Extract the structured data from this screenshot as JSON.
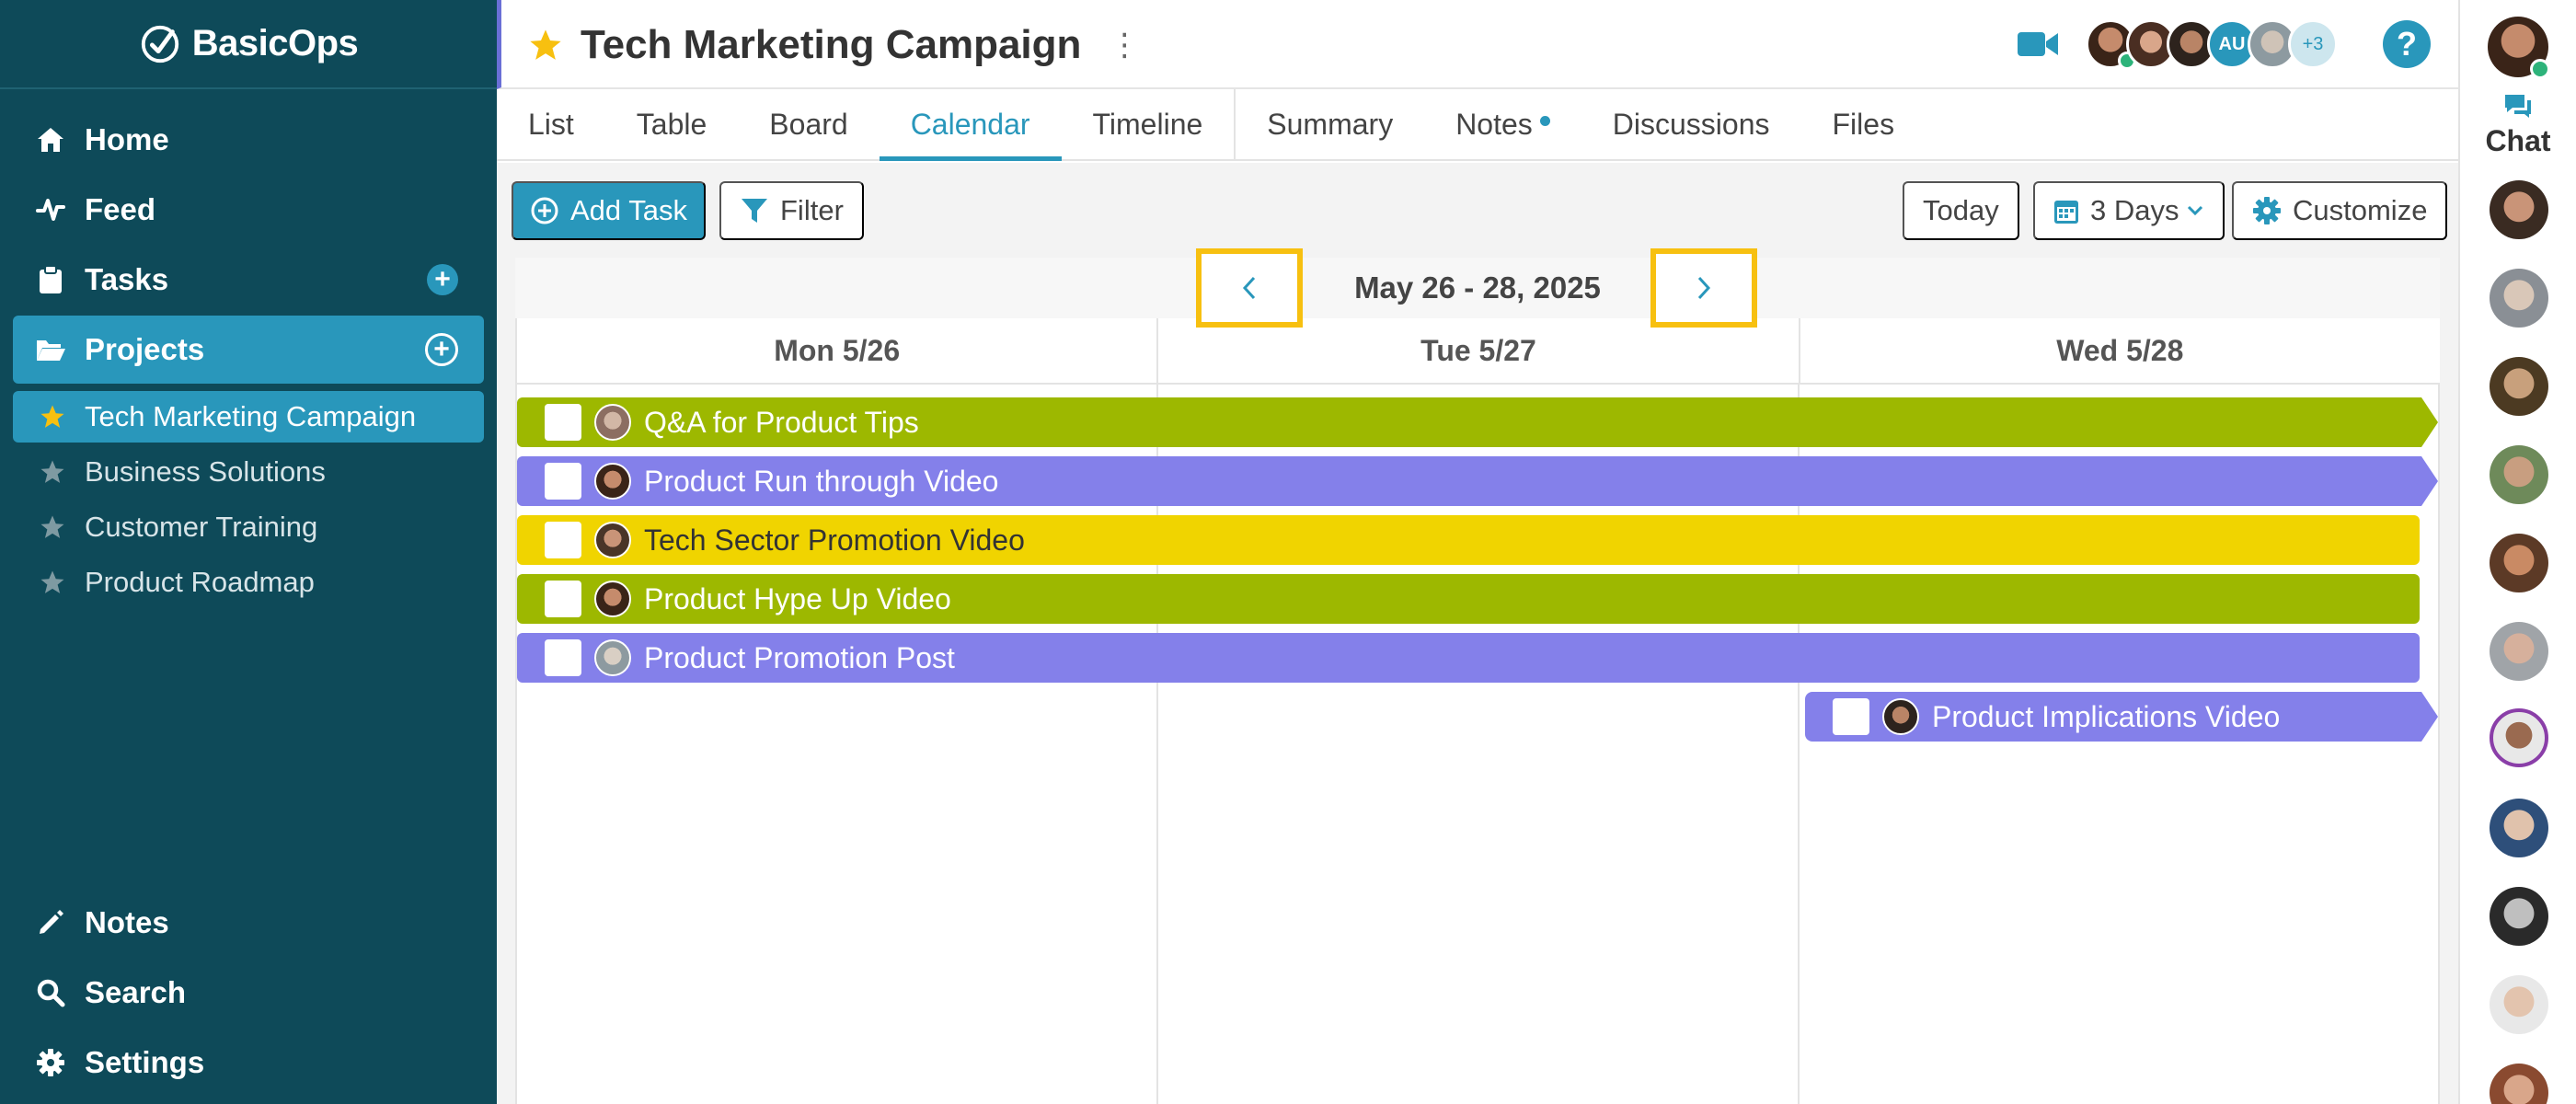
{
  "app": {
    "name": "BasicOps"
  },
  "sidebar": {
    "nav": [
      {
        "label": "Home",
        "icon": "home-icon"
      },
      {
        "label": "Feed",
        "icon": "activity-icon"
      },
      {
        "label": "Tasks",
        "icon": "clipboard-icon"
      },
      {
        "label": "Projects",
        "icon": "folder-icon"
      }
    ],
    "projects": [
      {
        "label": "Tech Marketing Campaign",
        "active": true
      },
      {
        "label": "Business Solutions"
      },
      {
        "label": "Customer Training"
      },
      {
        "label": "Product Roadmap"
      }
    ],
    "bottom": [
      {
        "label": "Notes",
        "icon": "pencil-icon"
      },
      {
        "label": "Search",
        "icon": "search-icon"
      },
      {
        "label": "Settings",
        "icon": "gear-icon"
      }
    ]
  },
  "header": {
    "title": "Tech Marketing Campaign",
    "members_initials": "AU",
    "members_more": "+3",
    "help": "?"
  },
  "tabs": [
    "List",
    "Table",
    "Board",
    "Calendar",
    "Timeline",
    "Summary",
    "Notes",
    "Discussions",
    "Files"
  ],
  "active_tab": "Calendar",
  "toolbar": {
    "add_task": "Add Task",
    "filter": "Filter",
    "today": "Today",
    "range_select": "3 Days",
    "customize": "Customize"
  },
  "calendar": {
    "range_label": "May 26 - 28, 2025",
    "days": [
      "Mon 5/26",
      "Tue 5/27",
      "Wed 5/28"
    ],
    "tasks": [
      {
        "title": "Q&A for Product Tips",
        "color": "#9db800"
      },
      {
        "title": "Product Run through Video",
        "color": "#8480ea"
      },
      {
        "title": "Tech Sector Promotion Video",
        "color": "#f0d400"
      },
      {
        "title": "Product Hype Up Video",
        "color": "#9db800"
      },
      {
        "title": "Product Promotion Post",
        "color": "#8480ea"
      },
      {
        "title": "Product Implications Video",
        "color": "#8480ea"
      }
    ]
  },
  "chat": {
    "label": "Chat"
  },
  "colors": {
    "sidebar": "#0e4a59",
    "accent": "#2997bb",
    "highlight": "#f7c010"
  }
}
